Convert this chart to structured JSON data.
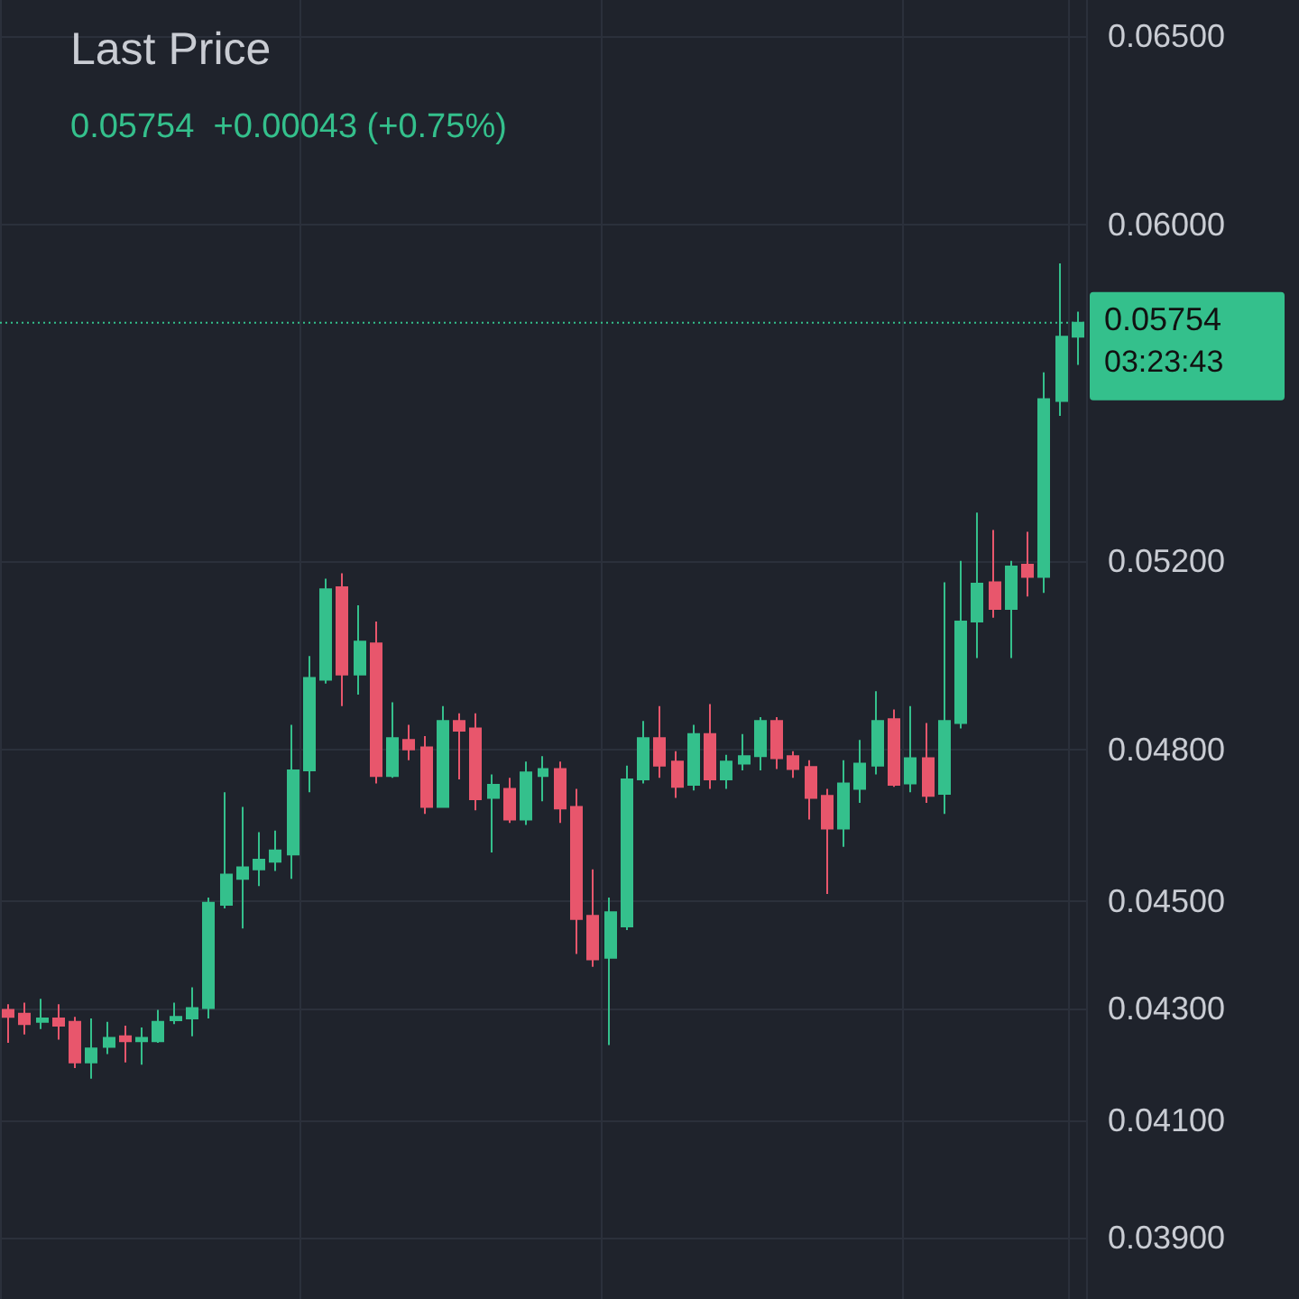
{
  "chart_data": {
    "type": "candlestick",
    "title": "Last Price",
    "subtitle": "0.05754  +0.00043 (+0.75%)",
    "categories": [
      null,
      null,
      null,
      null,
      null,
      null,
      null,
      null,
      null,
      null,
      null,
      null,
      null,
      null,
      null,
      null,
      null,
      null,
      null,
      null,
      null,
      null,
      null,
      null,
      null,
      null,
      null,
      null,
      null,
      null,
      null,
      null,
      null,
      null,
      null,
      null,
      null,
      null,
      null,
      null,
      null,
      null,
      null,
      null,
      null,
      null,
      null,
      null,
      null,
      null,
      null,
      null,
      null,
      null,
      null,
      null,
      null,
      null,
      null,
      null,
      null,
      null,
      null,
      null,
      null
    ],
    "ohlc": [
      [
        0.04297,
        0.04307,
        0.04237,
        0.04284
      ],
      [
        0.0429,
        0.0431,
        0.04252,
        0.04271
      ],
      [
        0.04275,
        0.04317,
        0.04262,
        0.04281
      ],
      [
        0.04281,
        0.04307,
        0.04243,
        0.04268
      ],
      [
        0.04275,
        0.04284,
        0.04192,
        0.04202
      ],
      [
        0.04202,
        0.04281,
        0.04173,
        0.04227
      ],
      [
        0.0423,
        0.04275,
        0.04217,
        0.04246
      ],
      [
        0.04249,
        0.04268,
        0.04202,
        0.0424
      ],
      [
        0.0424,
        0.04265,
        0.04198,
        0.04246
      ],
      [
        0.0424,
        0.04297,
        0.04237,
        0.04275
      ],
      [
        0.04278,
        0.0431,
        0.04271,
        0.04284
      ],
      [
        0.04281,
        0.04338,
        0.04249,
        0.043
      ],
      [
        0.043,
        0.04507,
        0.04281,
        0.04497
      ],
      [
        0.04493,
        0.04713,
        0.04486,
        0.04551
      ],
      [
        0.04543,
        0.04684,
        0.04448,
        0.04565
      ],
      [
        0.04561,
        0.04634,
        0.04529,
        0.0458
      ],
      [
        0.04576,
        0.04637,
        0.04558,
        0.04598
      ],
      [
        0.0459,
        0.0485,
        0.04543,
        0.04757
      ],
      [
        0.04757,
        0.04994,
        0.04713,
        0.04948
      ],
      [
        0.04944,
        0.05161,
        0.04936,
        0.05138
      ],
      [
        0.05142,
        0.05173,
        0.04889,
        0.04955
      ],
      [
        0.04955,
        0.05103,
        0.04913,
        0.05025
      ],
      [
        0.05021,
        0.05068,
        0.04731,
        0.04746
      ],
      [
        0.04746,
        0.04897,
        0.04742,
        0.04823
      ],
      [
        0.04819,
        0.0485,
        0.04778,
        0.048
      ],
      [
        0.04804,
        0.04827,
        0.0467,
        0.04684
      ],
      [
        0.04684,
        0.04889,
        0.04684,
        0.04858
      ],
      [
        0.04858,
        0.04874,
        0.04739,
        0.04838
      ],
      [
        0.04843,
        0.04874,
        0.04677,
        0.04699
      ],
      [
        0.04702,
        0.04749,
        0.04594,
        0.04728
      ],
      [
        0.0472,
        0.04742,
        0.04652,
        0.04659
      ],
      [
        0.04659,
        0.04775,
        0.04648,
        0.04753
      ],
      [
        0.04746,
        0.04786,
        0.04695,
        0.0476
      ],
      [
        0.0476,
        0.04775,
        0.04652,
        0.04681
      ],
      [
        0.04684,
        0.0472,
        0.044,
        0.04466
      ],
      [
        0.04472,
        0.04561,
        0.04376,
        0.0439
      ],
      [
        0.04393,
        0.04507,
        0.04233,
        0.04479
      ],
      [
        0.04452,
        0.04767,
        0.04445,
        0.04739
      ],
      [
        0.04739,
        0.04858,
        0.04731,
        0.04823
      ],
      [
        0.04823,
        0.04889,
        0.04742,
        0.04767
      ],
      [
        0.04775,
        0.04796,
        0.04702,
        0.04724
      ],
      [
        0.04728,
        0.0485,
        0.04717,
        0.04831
      ],
      [
        0.04831,
        0.04893,
        0.0472,
        0.04739
      ],
      [
        0.04739,
        0.04789,
        0.0472,
        0.04775
      ],
      [
        0.04771,
        0.04831,
        0.04757,
        0.04786
      ],
      [
        0.04786,
        0.04866,
        0.04757,
        0.04858
      ],
      [
        0.04858,
        0.04866,
        0.0476,
        0.04782
      ],
      [
        0.04786,
        0.04796,
        0.04742,
        0.0476
      ],
      [
        0.04764,
        0.04778,
        0.04659,
        0.04702
      ],
      [
        0.04706,
        0.0472,
        0.04514,
        0.04641
      ],
      [
        0.04641,
        0.04778,
        0.04605,
        0.04731
      ],
      [
        0.0472,
        0.04819,
        0.04692,
        0.04771
      ],
      [
        0.04767,
        0.0492,
        0.04749,
        0.04858
      ],
      [
        0.04862,
        0.04882,
        0.04724,
        0.04728
      ],
      [
        0.04731,
        0.04889,
        0.04713,
        0.04782
      ],
      [
        0.04782,
        0.04854,
        0.04692,
        0.04706
      ],
      [
        0.0471,
        0.05153,
        0.0467,
        0.04858
      ],
      [
        0.04854,
        0.052,
        0.04843,
        0.05068
      ],
      [
        0.05068,
        0.05308,
        0.0499,
        0.0515
      ],
      [
        0.05153,
        0.05269,
        0.05076,
        0.05095
      ],
      [
        0.05095,
        0.052,
        0.0499,
        0.05188
      ],
      [
        0.05192,
        0.05265,
        0.05122,
        0.05165
      ],
      [
        0.05165,
        0.05634,
        0.0513,
        0.0557
      ],
      [
        0.05566,
        0.05901,
        0.05531,
        0.0572
      ],
      [
        0.0572,
        0.05781,
        0.05652,
        0.05754
      ]
    ],
    "colors": [
      "#e8566c",
      "#e8566c",
      "#34c08c",
      "#e8566c",
      "#e8566c",
      "#34c08c",
      "#34c08c",
      "#e8566c",
      "#34c08c",
      "#34c08c",
      "#34c08c",
      "#34c08c",
      "#34c08c",
      "#34c08c",
      "#34c08c",
      "#34c08c",
      "#34c08c",
      "#34c08c",
      "#34c08c",
      "#34c08c",
      "#e8566c",
      "#34c08c",
      "#e8566c",
      "#34c08c",
      "#e8566c",
      "#e8566c",
      "#34c08c",
      "#e8566c",
      "#e8566c",
      "#34c08c",
      "#e8566c",
      "#34c08c",
      "#34c08c",
      "#e8566c",
      "#e8566c",
      "#e8566c",
      "#34c08c",
      "#34c08c",
      "#34c08c",
      "#e8566c",
      "#e8566c",
      "#34c08c",
      "#e8566c",
      "#34c08c",
      "#34c08c",
      "#34c08c",
      "#e8566c",
      "#e8566c",
      "#e8566c",
      "#e8566c",
      "#34c08c",
      "#34c08c",
      "#34c08c",
      "#e8566c",
      "#34c08c",
      "#e8566c",
      "#34c08c",
      "#34c08c",
      "#34c08c",
      "#e8566c",
      "#34c08c",
      "#e8566c",
      "#34c08c",
      "#34c08c",
      "#34c08c"
    ],
    "log": true,
    "ylim": [
      0.038,
      0.066
    ],
    "yticks": [
      {
        "value": 0.039,
        "label": "0.03900"
      },
      {
        "value": 0.041,
        "label": "0.04100"
      },
      {
        "value": 0.043,
        "label": "0.04300"
      },
      {
        "value": 0.045,
        "label": "0.04500"
      },
      {
        "value": 0.048,
        "label": "0.04800"
      },
      {
        "value": 0.052,
        "label": "0.05200"
      },
      {
        "value": 0.06,
        "label": "0.06000"
      },
      {
        "value": 0.065,
        "label": "0.06500"
      }
    ],
    "tick_labels": "y",
    "grid": true,
    "ref_lines": [
      {
        "axis": "y",
        "value": 0.05754,
        "label": "0.05754",
        "color": "#34c08c",
        "line_style": "dotted"
      }
    ],
    "annotations": [
      "03:23:43"
    ]
  }
}
